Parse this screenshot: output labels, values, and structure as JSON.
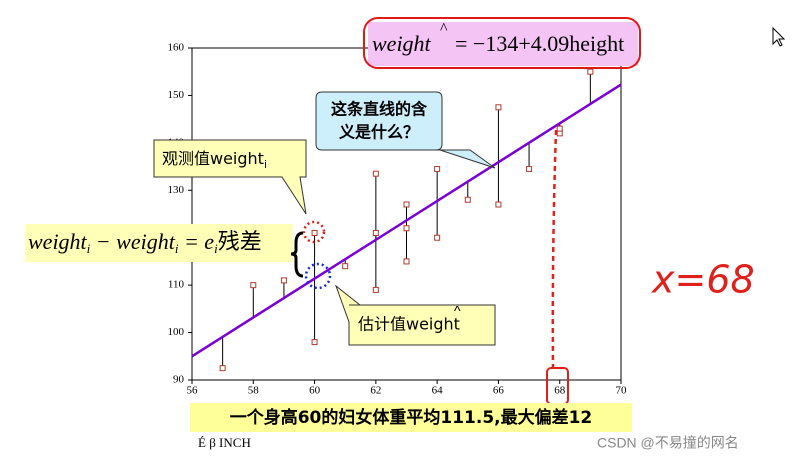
{
  "chart_data": {
    "type": "scatter",
    "x": [
      57,
      58,
      59,
      60,
      60,
      61,
      62,
      62,
      62,
      63,
      63,
      63,
      64,
      64,
      65,
      66,
      66,
      67,
      68,
      68,
      69
    ],
    "values": [
      92.5,
      110,
      111,
      98,
      121,
      114,
      109,
      121,
      133.5,
      115,
      122,
      127,
      120,
      134.5,
      128,
      127,
      147.5,
      134.5,
      142,
      143,
      155
    ],
    "color": "#b03a2e",
    "fit": {
      "x": [
        56,
        70
      ],
      "values": [
        95,
        152.3
      ],
      "color": "#7a00d6"
    },
    "xlim": [
      56,
      70
    ],
    "xticks": [
      56,
      58,
      60,
      62,
      64,
      66,
      68,
      70
    ],
    "ylim": [
      90,
      160
    ],
    "yticks": [
      90,
      100,
      110,
      120,
      130,
      140,
      150,
      160
    ],
    "x_label": "É β INCH",
    "equation": {
      "lhs": "weight",
      "rhs": "= −134+4.09height"
    },
    "question": [
      "这条直线的含",
      "义是什么？"
    ],
    "observed_label": {
      "text": "观测值weight",
      "sub": "i"
    },
    "residual_formula": {
      "a": "weight",
      "a_sub": "i",
      "b": " − weight",
      "b_sub": "i",
      "c": " = e",
      "c_sub": "i",
      "d": "残差"
    },
    "estimate_label": "估计值weight",
    "note": "一个身高60的妇女体重平均111.5,最大偏差12",
    "handwritten": "x=68",
    "watermark": "CSDN @不易撞的网名"
  }
}
